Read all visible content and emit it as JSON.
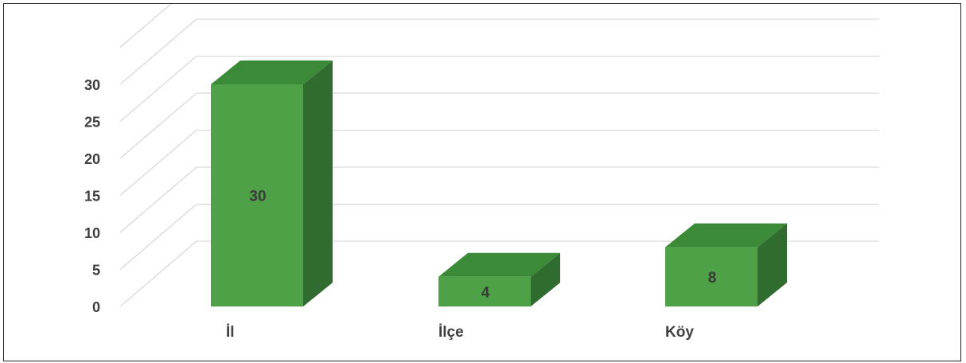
{
  "chart_data": {
    "type": "bar",
    "style": "3d-column",
    "categories": [
      "İl",
      "İlçe",
      "Köy"
    ],
    "values": [
      30,
      4,
      8
    ],
    "ylim": [
      0,
      35
    ],
    "yticks": [
      0,
      5,
      10,
      15,
      20,
      25,
      30
    ],
    "data_labels": [
      "30",
      "4",
      "8"
    ],
    "grid": true,
    "legend": "none",
    "title": "",
    "xlabel": "",
    "ylabel": "",
    "colors": {
      "front": "#4ea146",
      "top": "#3a8a37",
      "side": "#306b30",
      "grid": "#d9d9d9",
      "text": "#404040"
    }
  }
}
